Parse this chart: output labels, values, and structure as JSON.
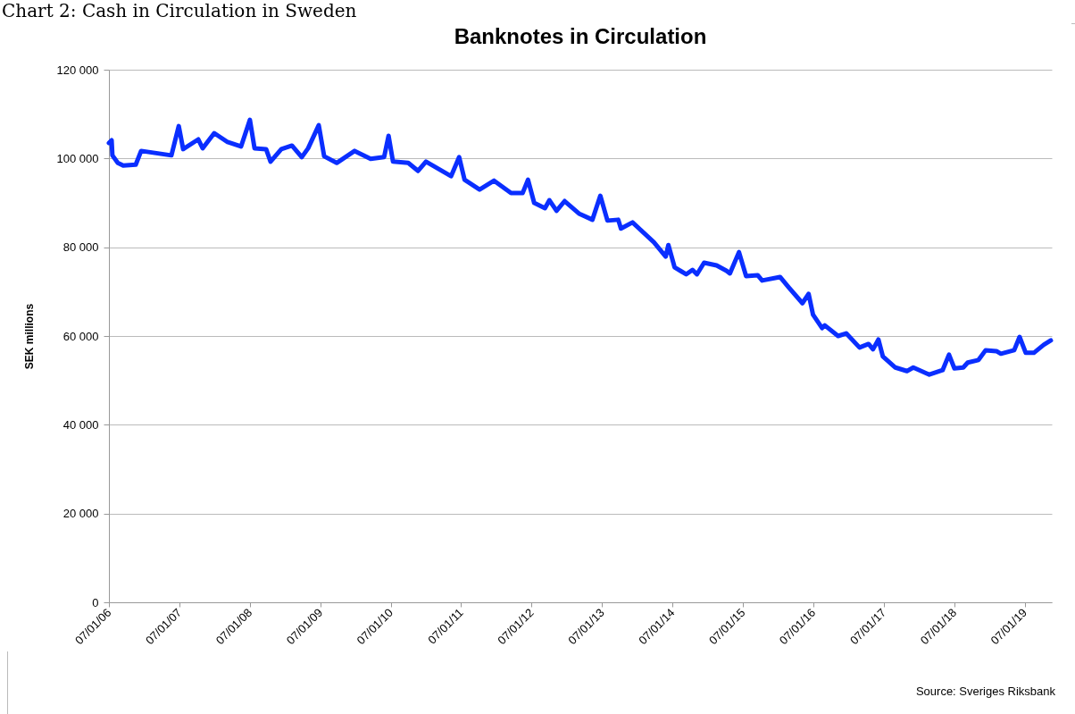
{
  "chart_data": {
    "type": "line",
    "title": "Banknotes in Circulation",
    "ylabel": "SEK millions",
    "annotations": [
      "Chart 2: Cash in Circulation in Sweden",
      "Source: Sveriges Riksbank"
    ],
    "x": [
      "2006-01-07",
      "2006-01-21",
      "2006-01-25",
      "2006-02-22",
      "2006-03-22",
      "2006-05-26",
      "2006-06-23",
      "2006-11-27",
      "2007-01-04",
      "2007-01-27",
      "2007-04-15",
      "2007-05-08",
      "2007-07-07",
      "2007-09-14",
      "2007-11-23",
      "2008-01-08",
      "2008-02-01",
      "2008-04-01",
      "2008-04-24",
      "2008-06-19",
      "2008-08-13",
      "2008-10-03",
      "2008-11-05",
      "2008-12-30",
      "2009-01-27",
      "2009-04-02",
      "2009-07-04",
      "2009-09-25",
      "2009-12-04",
      "2009-12-27",
      "2010-01-19",
      "2010-04-08",
      "2010-05-29",
      "2010-07-09",
      "2010-11-16",
      "2010-12-28",
      "2011-01-25",
      "2011-04-13",
      "2011-06-27",
      "2011-09-23",
      "2011-11-22",
      "2011-12-20",
      "2012-01-21",
      "2012-03-17",
      "2012-04-09",
      "2012-05-16",
      "2012-06-27",
      "2012-09-09",
      "2012-11-18",
      "2012-12-29",
      "2013-02-04",
      "2013-04-01",
      "2013-04-15",
      "2013-06-14",
      "2013-10-03",
      "2013-12-03",
      "2013-12-17",
      "2014-01-18",
      "2014-03-19",
      "2014-04-21",
      "2014-05-14",
      "2014-06-20",
      "2014-08-24",
      "2014-10-14",
      "2014-11-01",
      "2014-12-18",
      "2015-01-24",
      "2015-03-25",
      "2015-04-17",
      "2015-07-19",
      "2015-09-03",
      "2015-11-12",
      "2015-12-14",
      "2016-01-06",
      "2016-02-22",
      "2016-03-07",
      "2016-05-15",
      "2016-06-26",
      "2016-09-03",
      "2016-10-20",
      "2016-11-12",
      "2016-12-10",
      "2017-01-02",
      "2017-03-08",
      "2017-05-07",
      "2017-06-09",
      "2017-08-31",
      "2017-11-08",
      "2017-12-11",
      "2018-01-08",
      "2018-02-23",
      "2018-03-18",
      "2018-05-13",
      "2018-06-19",
      "2018-08-14",
      "2018-09-06",
      "2018-11-14",
      "2018-12-12",
      "2019-01-13",
      "2019-02-24",
      "2019-04-16",
      "2019-05-23"
    ],
    "series": [
      {
        "color": "#0a2eff",
        "values": [
          103500,
          104100,
          100700,
          99000,
          98400,
          98600,
          101700,
          100700,
          107300,
          102100,
          104300,
          102300,
          105700,
          103700,
          102700,
          108700,
          102300,
          102100,
          99300,
          102100,
          102900,
          100300,
          102300,
          107500,
          100500,
          99000,
          101700,
          99900,
          100300,
          105100,
          99300,
          99000,
          97200,
          99300,
          96000,
          100300,
          95200,
          93000,
          95000,
          92200,
          92200,
          95200,
          90000,
          88800,
          90600,
          88200,
          90400,
          87600,
          86200,
          91600,
          86000,
          86200,
          84200,
          85600,
          81100,
          77900,
          80500,
          75500,
          73900,
          74900,
          73900,
          76500,
          75900,
          74700,
          74100,
          78900,
          73500,
          73700,
          72500,
          73300,
          70900,
          67400,
          69500,
          64800,
          61800,
          62400,
          60000,
          60600,
          57400,
          58200,
          57000,
          59200,
          55400,
          52900,
          52100,
          52900,
          51300,
          52300,
          55800,
          52700,
          52900,
          54000,
          54600,
          56800,
          56600,
          56000,
          56800,
          59800,
          56200,
          56200,
          58000,
          59000
        ]
      }
    ],
    "xlim": [
      "2006-01-07",
      "2019-05-28"
    ],
    "xticks": [
      {
        "value": "2006-01-07",
        "label": "07/01/06"
      },
      {
        "value": "2007-01-07",
        "label": "07/01/07"
      },
      {
        "value": "2008-01-07",
        "label": "07/01/08"
      },
      {
        "value": "2009-01-07",
        "label": "07/01/09"
      },
      {
        "value": "2010-01-07",
        "label": "07/01/10"
      },
      {
        "value": "2011-01-07",
        "label": "07/01/11"
      },
      {
        "value": "2012-01-07",
        "label": "07/01/12"
      },
      {
        "value": "2013-01-07",
        "label": "07/01/13"
      },
      {
        "value": "2014-01-07",
        "label": "07/01/14"
      },
      {
        "value": "2015-01-07",
        "label": "07/01/15"
      },
      {
        "value": "2016-01-07",
        "label": "07/01/16"
      },
      {
        "value": "2017-01-07",
        "label": "07/01/17"
      },
      {
        "value": "2018-01-07",
        "label": "07/01/18"
      },
      {
        "value": "2019-01-07",
        "label": "07/01/19"
      }
    ],
    "ylim": [
      0,
      120000
    ],
    "yticks": [
      0,
      {
        "value": 20000,
        "label": "20 000"
      },
      {
        "value": 40000,
        "label": "40 000"
      },
      {
        "value": 60000,
        "label": "60 000"
      },
      {
        "value": 80000,
        "label": "80 000"
      },
      {
        "value": 100000,
        "label": "100 000"
      },
      {
        "value": 120000,
        "label": "120 000"
      }
    ],
    "grid": "y",
    "marker": "none",
    "line_style": "solid",
    "legend": false
  }
}
